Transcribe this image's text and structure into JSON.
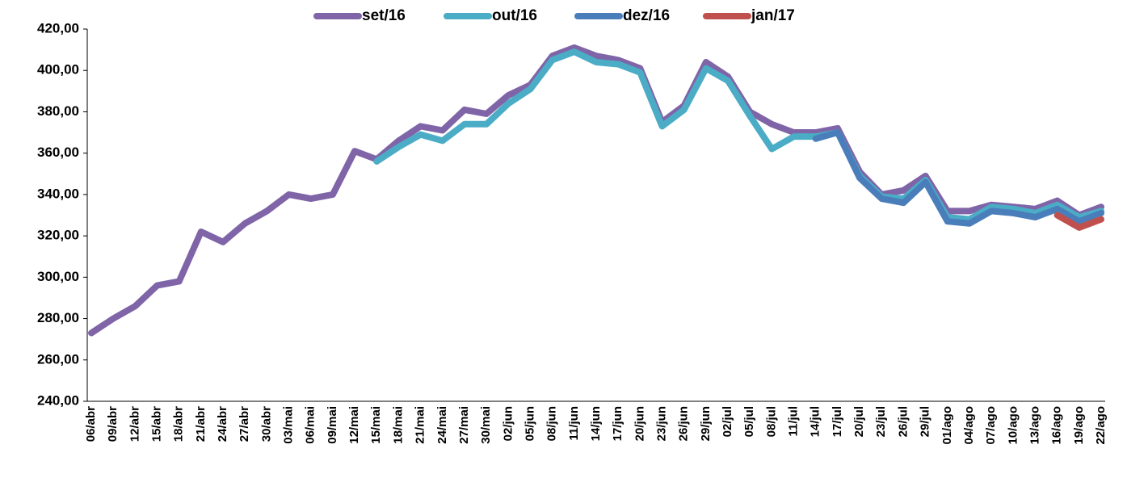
{
  "chart_data": {
    "type": "line",
    "categories": [
      "06/abr",
      "09/abr",
      "12/abr",
      "15/abr",
      "18/abr",
      "21/abr",
      "24/abr",
      "27/abr",
      "30/abr",
      "03/mai",
      "06/mai",
      "09/mai",
      "12/mai",
      "15/mai",
      "18/mai",
      "21/mai",
      "24/mai",
      "27/mai",
      "30/mai",
      "02/jun",
      "05/jun",
      "08/jun",
      "11/jun",
      "14/jun",
      "17/jun",
      "20/jun",
      "23/jun",
      "26/jun",
      "29/jun",
      "02/jul",
      "05/jul",
      "08/jul",
      "11/jul",
      "14/jul",
      "17/jul",
      "20/jul",
      "23/jul",
      "26/jul",
      "29/jul",
      "01/ago",
      "04/ago",
      "07/ago",
      "10/ago",
      "13/ago",
      "16/ago",
      "19/ago",
      "22/ago"
    ],
    "series": [
      {
        "name": "set/16",
        "color": "#7f64a8",
        "values": [
          273,
          280,
          286,
          296,
          298,
          322,
          317,
          326,
          332,
          340,
          338,
          340,
          361,
          357,
          366,
          373,
          371,
          381,
          379,
          388,
          393,
          407,
          411,
          407,
          405,
          401,
          375,
          383,
          404,
          397,
          380,
          374,
          370,
          370,
          372,
          351,
          340,
          342,
          349,
          332,
          332,
          335,
          334,
          333,
          337,
          330,
          334
        ]
      },
      {
        "name": "out/16",
        "color": "#4bacc6",
        "values": [
          null,
          null,
          null,
          null,
          null,
          null,
          null,
          null,
          null,
          null,
          null,
          null,
          null,
          356,
          363,
          369,
          366,
          374,
          374,
          384,
          391,
          405,
          409,
          404,
          403,
          399,
          373,
          381,
          401,
          395,
          378,
          362,
          368,
          368,
          370,
          349,
          339,
          338,
          347,
          329,
          328,
          334,
          333,
          331,
          335,
          329,
          332
        ]
      },
      {
        "name": "dez/16",
        "color": "#4a7ebb",
        "values": [
          null,
          null,
          null,
          null,
          null,
          null,
          null,
          null,
          null,
          null,
          null,
          null,
          null,
          null,
          null,
          null,
          null,
          null,
          null,
          null,
          null,
          null,
          null,
          null,
          null,
          null,
          null,
          null,
          null,
          null,
          null,
          null,
          null,
          367,
          370,
          348,
          338,
          336,
          346,
          327,
          326,
          332,
          331,
          329,
          333,
          327,
          331
        ]
      },
      {
        "name": "jan/17",
        "color": "#c0504d",
        "values": [
          null,
          null,
          null,
          null,
          null,
          null,
          null,
          null,
          null,
          null,
          null,
          null,
          null,
          null,
          null,
          null,
          null,
          null,
          null,
          null,
          null,
          null,
          null,
          null,
          null,
          null,
          null,
          null,
          null,
          null,
          null,
          null,
          null,
          null,
          null,
          null,
          null,
          null,
          null,
          null,
          null,
          null,
          null,
          null,
          330,
          324,
          328
        ]
      }
    ],
    "ylim": [
      240,
      420
    ],
    "yticks": [
      {
        "value": 240,
        "label": "240,00"
      },
      {
        "value": 260,
        "label": "260,00"
      },
      {
        "value": 280,
        "label": "280,00"
      },
      {
        "value": 300,
        "label": "300,00"
      },
      {
        "value": 320,
        "label": "320,00"
      },
      {
        "value": 340,
        "label": "340,00"
      },
      {
        "value": 360,
        "label": "360,00"
      },
      {
        "value": 380,
        "label": "380,00"
      },
      {
        "value": 400,
        "label": "400,00"
      },
      {
        "value": 420,
        "label": "420,00"
      }
    ],
    "grid": false
  }
}
